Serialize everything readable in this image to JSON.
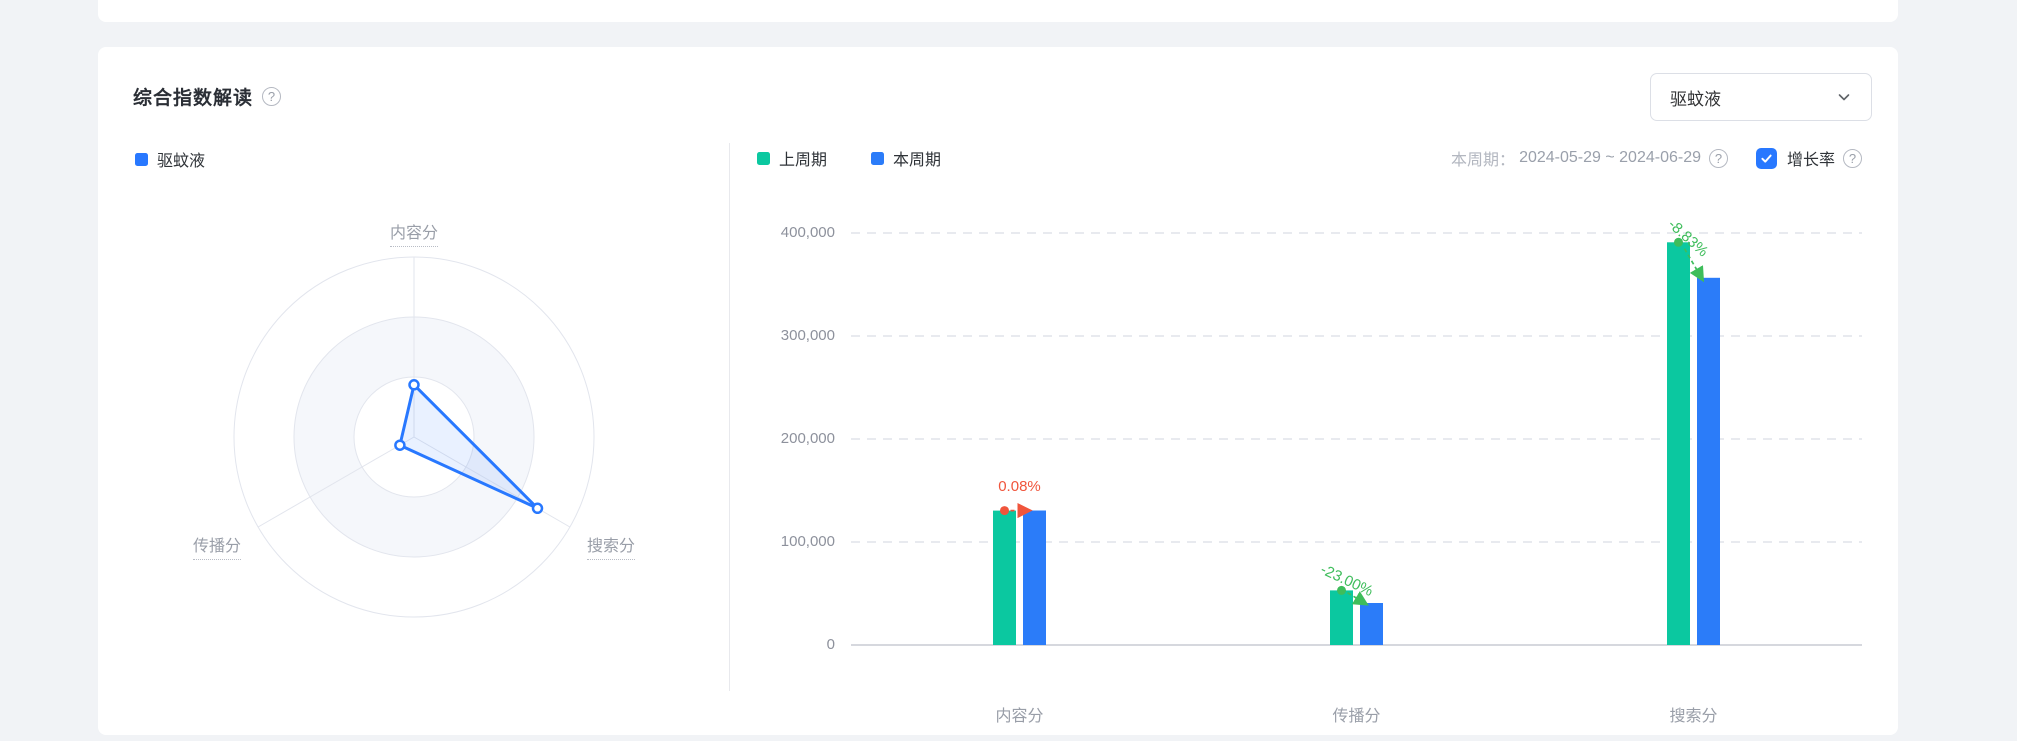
{
  "card": {
    "title": "综合指数解读",
    "keyword_select": {
      "value": "驱蚊液"
    }
  },
  "icons": {
    "help_glyph": "?"
  },
  "radar_panel": {
    "legend": [
      {
        "label": "驱蚊液"
      }
    ]
  },
  "bar_panel": {
    "legend": [
      {
        "label": "上周期"
      },
      {
        "label": "本周期"
      }
    ],
    "period_label": "本周期：",
    "period_range": "2024-05-29 ~ 2024-06-29",
    "growth_toggle": {
      "label": "增长率",
      "checked": true
    }
  },
  "colors": {
    "bar_green": "#0bc8a0",
    "bar_blue": "#2b7cf9",
    "radar_blue": "#2878ff",
    "up": "#f0553c",
    "down": "#3ebd5b"
  },
  "chart_data": [
    {
      "type": "radar",
      "series_name": "驱蚊液",
      "indicators": [
        {
          "name": "内容分",
          "max": 450000
        },
        {
          "name": "搜索分",
          "max": 450000
        },
        {
          "name": "传播分",
          "max": 450000
        }
      ],
      "values": [
        130600,
        356500,
        40800
      ],
      "legend": [
        "驱蚊液"
      ],
      "rings": 3
    },
    {
      "type": "bar",
      "categories": [
        "内容分",
        "传播分",
        "搜索分"
      ],
      "series": [
        {
          "name": "上周期",
          "values": [
            130500,
            53000,
            391000
          ]
        },
        {
          "name": "本周期",
          "values": [
            130600,
            40810,
            356500
          ]
        }
      ],
      "growth": [
        {
          "text": "0.08%",
          "direction": "up"
        },
        {
          "text": "-23.00%",
          "direction": "down"
        },
        {
          "text": "-8.83%",
          "direction": "down"
        }
      ],
      "ylim": [
        0,
        400000
      ],
      "yticks": [
        0,
        100000,
        200000,
        300000,
        400000
      ],
      "grid": "dashed-horizontal",
      "legend_position": "top-left"
    }
  ]
}
